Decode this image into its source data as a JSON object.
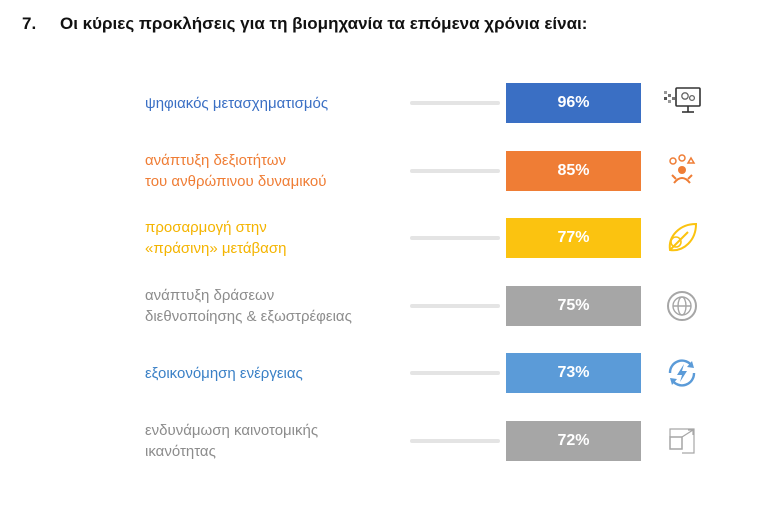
{
  "question": {
    "number": "7.",
    "text": "Οι κύριες προκλήσεις για τη βιομηχανία τα επόμενα χρόνια είναι:"
  },
  "chart_data": {
    "type": "bar",
    "orientation": "horizontal",
    "title": "Οι κύριες προκλήσεις για τη βιομηχανία τα επόμενα χρόνια είναι:",
    "categories": [
      "ψηφιακός μετασχηματισμός",
      "ανάπτυξη δεξιοτήτων του ανθρώπινου δυναμικού",
      "προσαρμογή στην «πράσινη» μετάβαση",
      "ανάπτυξη δράσεων διεθνοποίησης & εξωστρέφειας",
      "εξοικονόμηση ενέργειας",
      "ενδυνάμωση καινοτομικής ικανότητας"
    ],
    "values": [
      96,
      85,
      77,
      75,
      73,
      72
    ],
    "value_labels": [
      "96%",
      "85%",
      "77%",
      "75%",
      "73%",
      "72%"
    ],
    "unit": "%",
    "rows": [
      {
        "lines": [
          "ψηφιακός μετασχηματισμός"
        ],
        "value": 96,
        "value_label": "96%",
        "color": "#3a6fc4",
        "label_color": "#3a6fc4",
        "icon": "digital-monitor-icon"
      },
      {
        "lines": [
          "ανάπτυξη δεξιοτήτων",
          "του ανθρώπινου δυναμικού"
        ],
        "value": 85,
        "value_label": "85%",
        "color": "#ef7d35",
        "label_color": "#ef7d35",
        "icon": "team-skills-icon"
      },
      {
        "lines": [
          "προσαρμογή στην",
          "«πράσινη» μετάβαση"
        ],
        "value": 77,
        "value_label": "77%",
        "color": "#fbc310",
        "label_color": "#f4b400",
        "icon": "leaf-icon"
      },
      {
        "lines": [
          "ανάπτυξη δράσεων",
          "διεθνοποίησης & εξωστρέφειας"
        ],
        "value": 75,
        "value_label": "75%",
        "color": "#a6a6a6",
        "label_color": "#8c8c8c",
        "icon": "globe-icon"
      },
      {
        "lines": [
          "εξοικονόμηση ενέργειας"
        ],
        "value": 73,
        "value_label": "73%",
        "color": "#5b9bd8",
        "label_color": "#3a80c6",
        "icon": "energy-bolt-icon"
      },
      {
        "lines": [
          "ενδυνάμωση καινοτομικής",
          "ικανότητας"
        ],
        "value": 72,
        "value_label": "72%",
        "color": "#a6a6a6",
        "label_color": "#8c8c8c",
        "icon": "expand-square-icon"
      }
    ],
    "legend": "none",
    "grid": false
  }
}
